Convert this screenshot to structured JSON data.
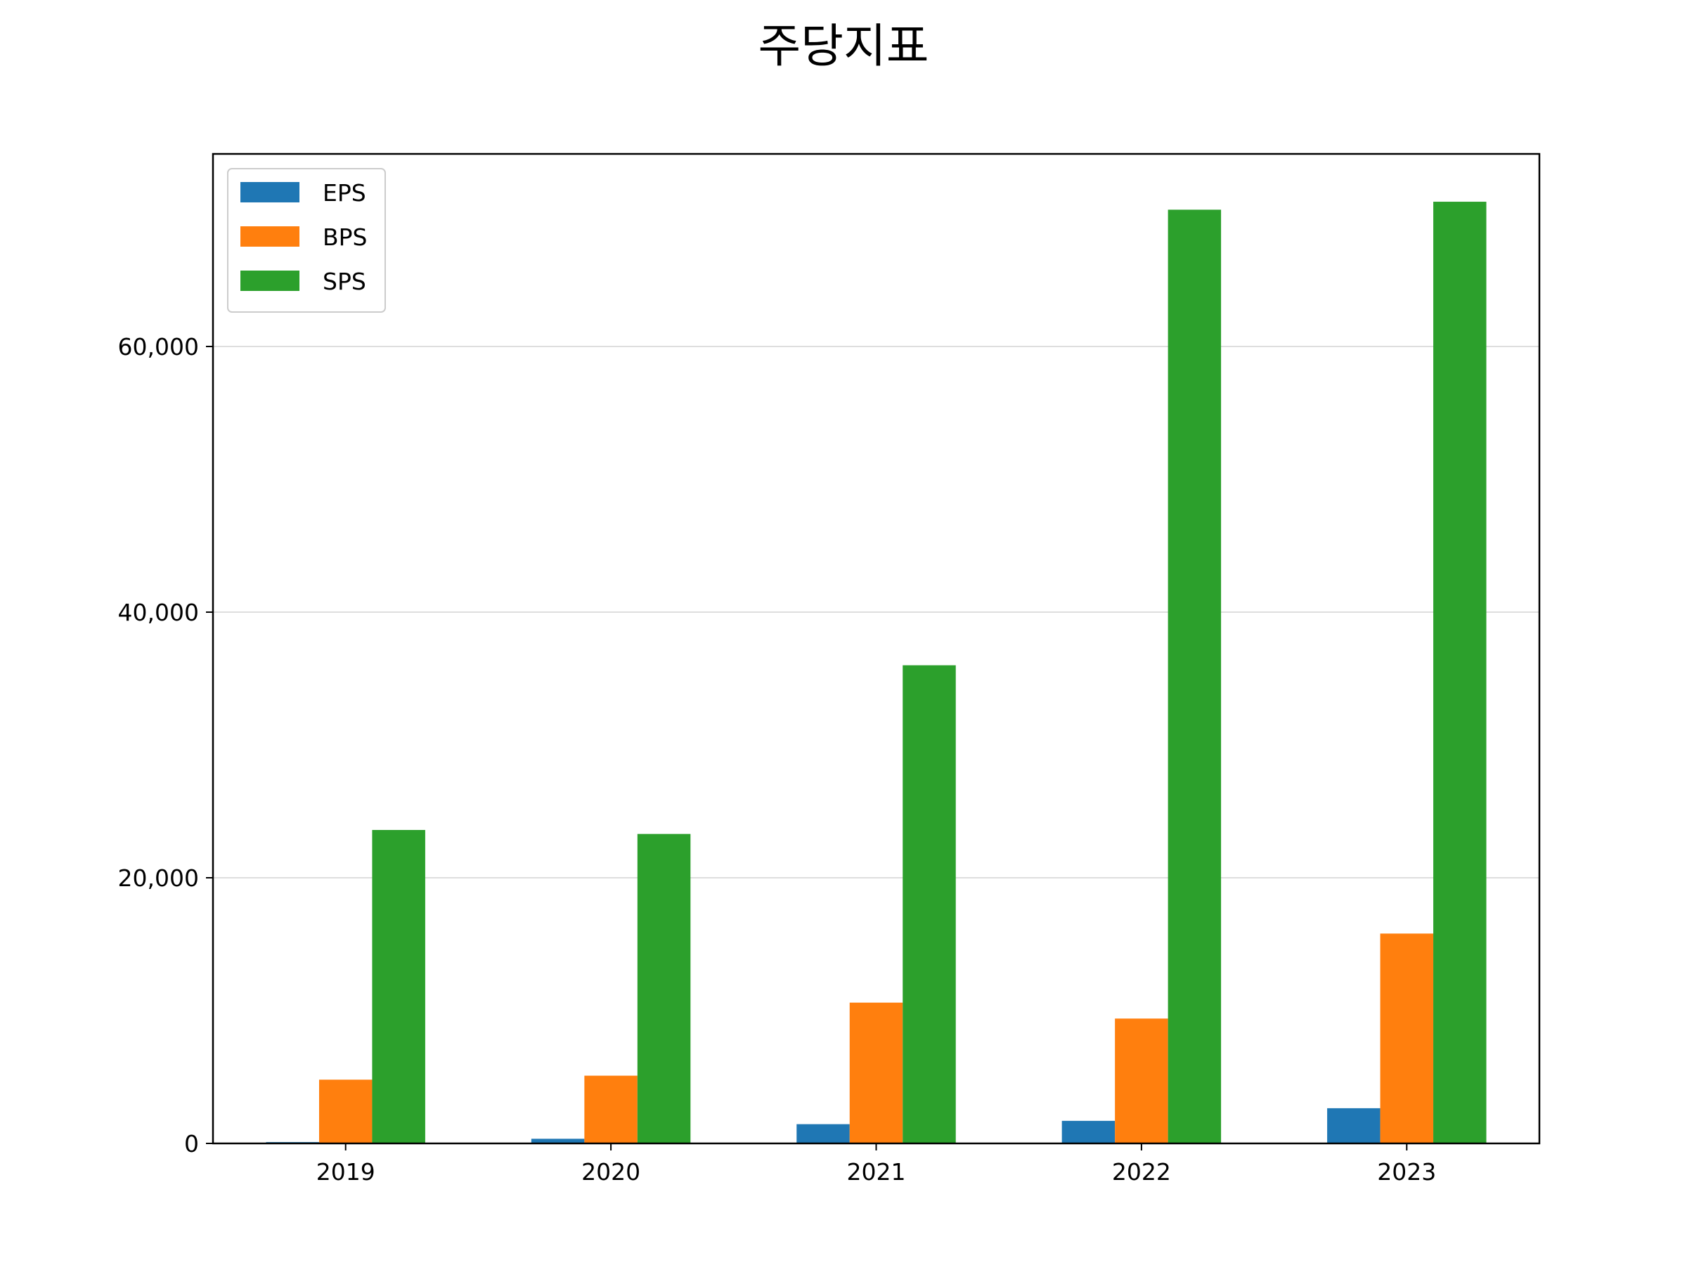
{
  "chart_data": {
    "type": "bar",
    "title": "주당지표",
    "xlabel": "",
    "ylabel": "",
    "categories": [
      "2019",
      "2020",
      "2021",
      "2022",
      "2023"
    ],
    "series": [
      {
        "name": "EPS",
        "color": "#1f77b4",
        "values": [
          100,
          350,
          1450,
          1700,
          2650
        ]
      },
      {
        "name": "BPS",
        "color": "#ff7f0e",
        "values": [
          4800,
          5100,
          10600,
          9400,
          15800
        ]
      },
      {
        "name": "SPS",
        "color": "#2ca02c",
        "values": [
          23600,
          23300,
          36000,
          70300,
          70900
        ]
      }
    ],
    "ylim": [
      0,
      74500
    ],
    "yticks": [
      0,
      20000,
      40000,
      60000
    ],
    "ytick_labels": [
      "0",
      "20,000",
      "40,000",
      "60,000"
    ],
    "grid": "horizontal",
    "legend_position": "upper-left"
  }
}
